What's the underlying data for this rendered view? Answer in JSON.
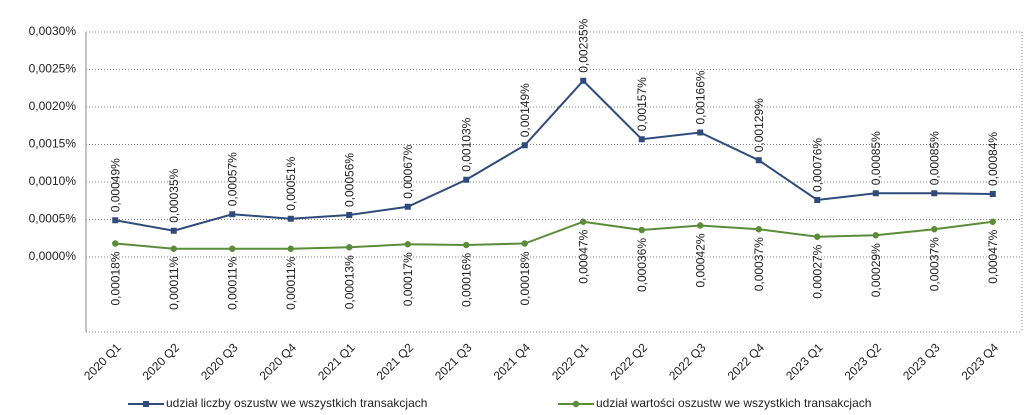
{
  "chart_data": {
    "type": "line",
    "categories": [
      "2020 Q1",
      "2020 Q2",
      "2020 Q3",
      "2020 Q4",
      "2021 Q1",
      "2021 Q2",
      "2021 Q3",
      "2021 Q4",
      "2022 Q1",
      "2022 Q2",
      "2022 Q3",
      "2022 Q4",
      "2023 Q1",
      "2023 Q2",
      "2023 Q3",
      "2023 Q4"
    ],
    "series": [
      {
        "name": "udział liczby oszustw we wszystkich transakcjach",
        "color": "#2f4b7c",
        "marker": "square",
        "label_side": "above",
        "values": [
          0.00049,
          0.00035,
          0.00057,
          0.00051,
          0.00056,
          0.00067,
          0.00103,
          0.00149,
          0.00235,
          0.00157,
          0.00166,
          0.00129,
          0.00076,
          0.00085,
          0.00085,
          0.00084
        ],
        "value_labels": [
          "0,00049%",
          "0,00035%",
          "0,00057%",
          "0,00051%",
          "0,00056%",
          "0,00067%",
          "0,00103%",
          "0,00149%",
          "0,00235%",
          "0,00157%",
          "0,00166%",
          "0,00129%",
          "0,00076%",
          "0,00085%",
          "0,00085%",
          "0,00084%"
        ]
      },
      {
        "name": "udział wartości oszustw we wszystkich transakcjach",
        "color": "#5b8c3a",
        "marker": "circle",
        "label_side": "below",
        "values": [
          0.00018,
          0.00011,
          0.00011,
          0.00011,
          0.00013,
          0.00017,
          0.00016,
          0.00018,
          0.00047,
          0.00036,
          0.00042,
          0.00037,
          0.00027,
          0.00029,
          0.00037,
          0.00047
        ],
        "value_labels": [
          "0,00018%",
          "0,00011%",
          "0,00011%",
          "0,00011%",
          "0,00013%",
          "0,00017%",
          "0,00016%",
          "0,00018%",
          "0,00047%",
          "0,00036%",
          "0,00042%",
          "0,00037%",
          "0,00027%",
          "0,00029%",
          "0,00037%",
          "0,00047%"
        ]
      }
    ],
    "ylim": [
      -0.001,
      0.003
    ],
    "yticks": [
      {
        "value": 0,
        "label": "0,0000%"
      },
      {
        "value": 0.0005,
        "label": "0,0005%"
      },
      {
        "value": 0.001,
        "label": "0,0010%"
      },
      {
        "value": 0.0015,
        "label": "0,0015%"
      },
      {
        "value": 0.002,
        "label": "0,0020%"
      },
      {
        "value": 0.0025,
        "label": "0,0025%"
      },
      {
        "value": 0.003,
        "label": "0,0030%"
      }
    ],
    "grid": true,
    "legend": "bottom"
  }
}
